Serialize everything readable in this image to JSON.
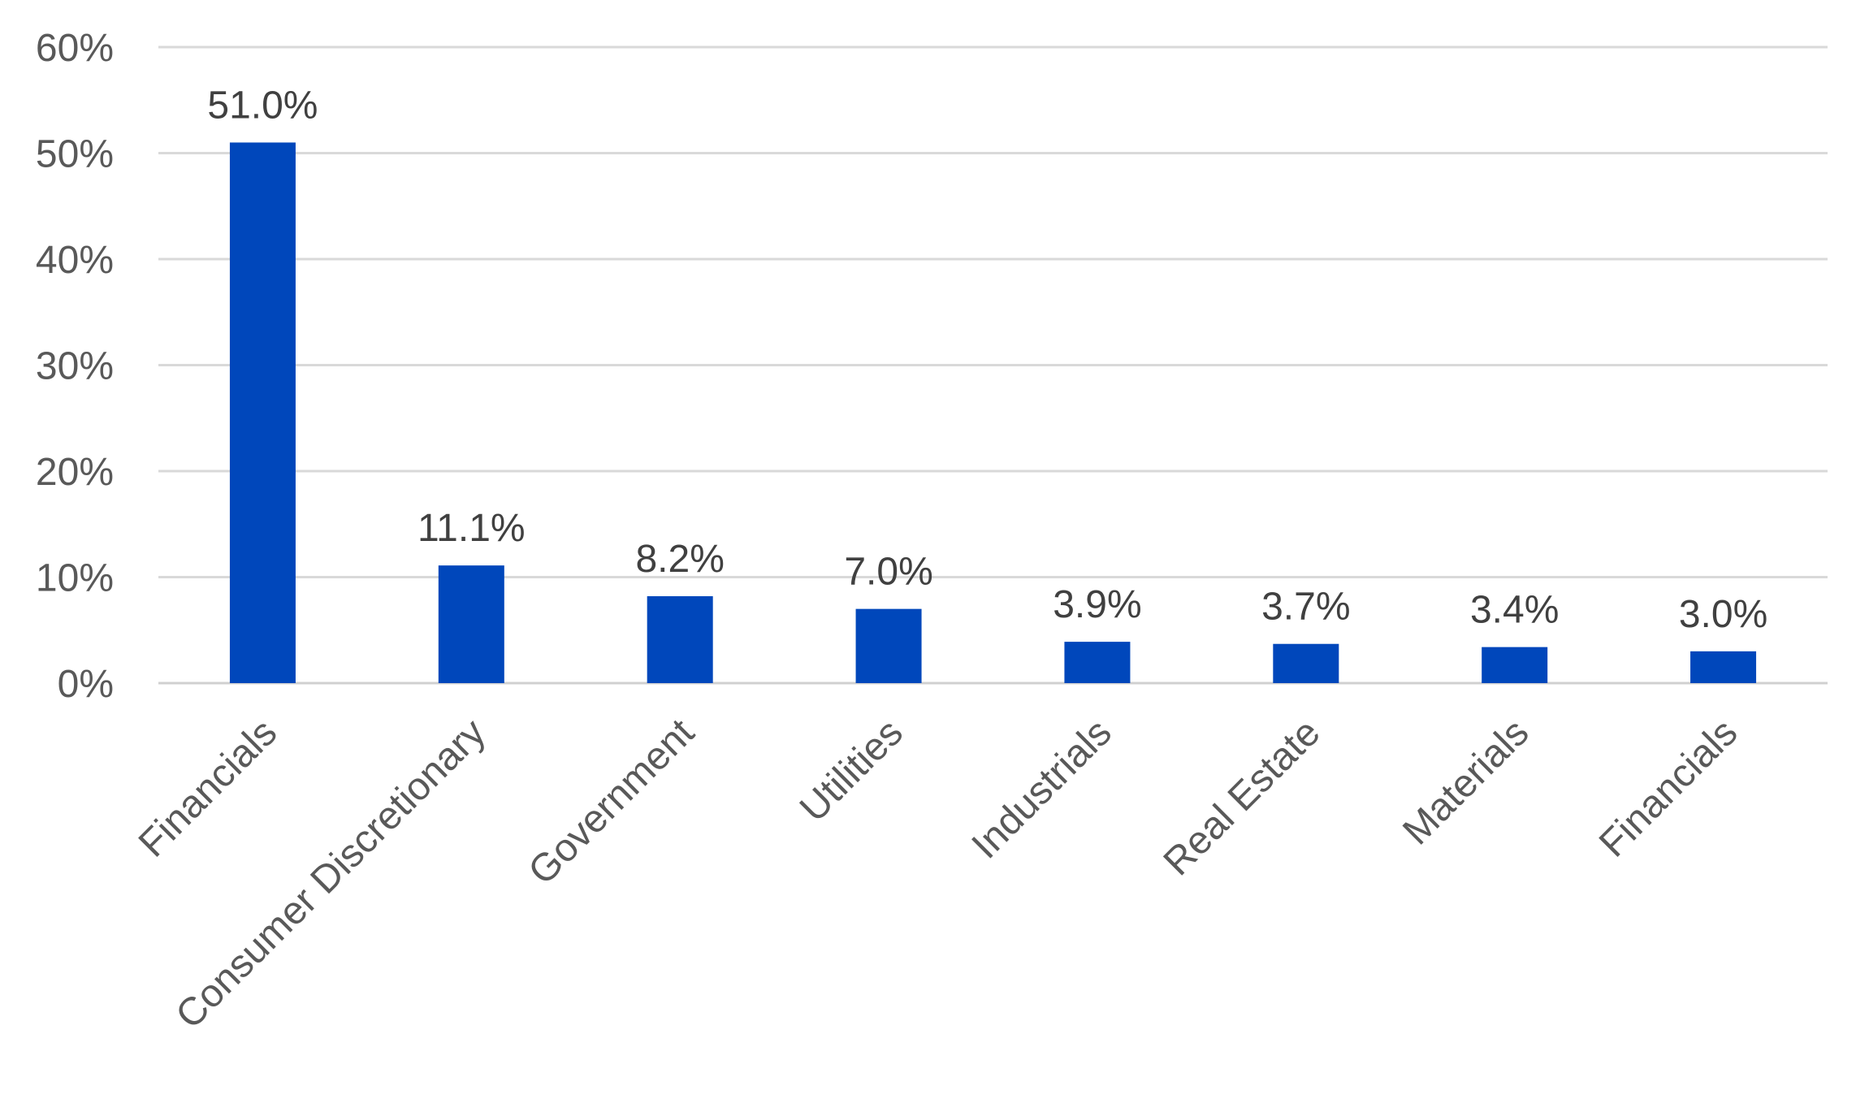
{
  "chart_data": {
    "type": "bar",
    "categories": [
      "Financials",
      "Consumer Discretionary",
      "Government",
      "Utilities",
      "Industrials",
      "Real Estate",
      "Materials",
      "Financials"
    ],
    "values": [
      51.0,
      11.1,
      8.2,
      7.0,
      3.9,
      3.7,
      3.4,
      3.0
    ],
    "data_labels": [
      "51.0%",
      "11.1%",
      "8.2%",
      "7.0%",
      "3.9%",
      "3.7%",
      "3.4%",
      "3.0%"
    ],
    "title": "",
    "xlabel": "",
    "ylabel": "",
    "ylim": [
      0,
      60
    ],
    "yticks": [
      0,
      10,
      20,
      30,
      40,
      50,
      60
    ],
    "ytick_labels": [
      "0%",
      "10%",
      "20%",
      "30%",
      "40%",
      "50%",
      "60%"
    ],
    "grid": true,
    "legend": "none",
    "bar_color": "#0047BB",
    "grid_color": "#D9D9D9",
    "text_color": "#595959"
  }
}
